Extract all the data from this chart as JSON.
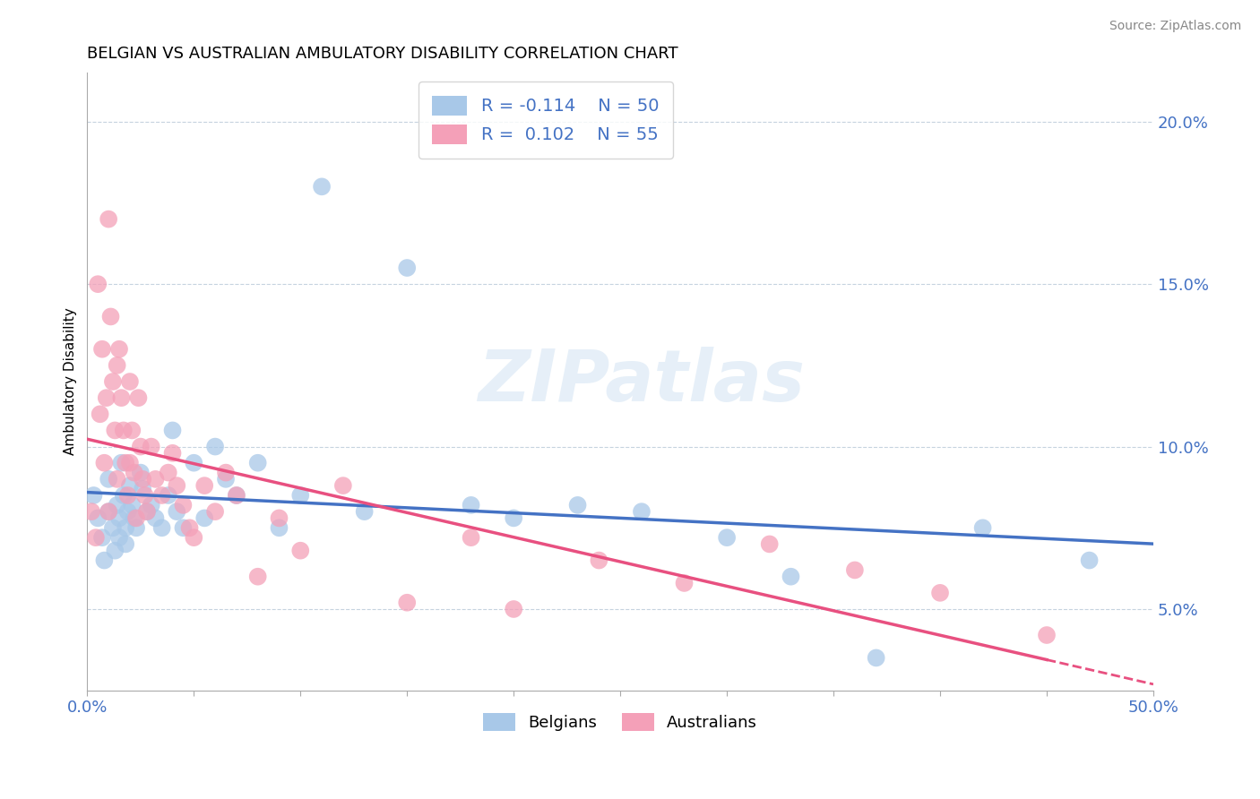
{
  "title": "BELGIAN VS AUSTRALIAN AMBULATORY DISABILITY CORRELATION CHART",
  "source": "Source: ZipAtlas.com",
  "ylabel": "Ambulatory Disability",
  "xlim": [
    0.0,
    0.5
  ],
  "ylim": [
    0.025,
    0.215
  ],
  "yticks": [
    0.05,
    0.1,
    0.15,
    0.2
  ],
  "ytick_labels": [
    "5.0%",
    "10.0%",
    "15.0%",
    "20.0%"
  ],
  "legend_blue_r": "R = -0.114",
  "legend_blue_n": "N = 50",
  "legend_pink_r": "R =  0.102",
  "legend_pink_n": "N = 55",
  "blue_color": "#a8c8e8",
  "pink_color": "#f4a0b8",
  "blue_line_color": "#4472c4",
  "pink_line_color": "#e85080",
  "watermark": "ZIPatlas",
  "background_color": "#ffffff",
  "belgians_x": [
    0.003,
    0.005,
    0.007,
    0.008,
    0.01,
    0.01,
    0.012,
    0.013,
    0.014,
    0.015,
    0.015,
    0.016,
    0.017,
    0.018,
    0.018,
    0.019,
    0.02,
    0.021,
    0.022,
    0.023,
    0.025,
    0.026,
    0.028,
    0.03,
    0.032,
    0.035,
    0.038,
    0.04,
    0.042,
    0.045,
    0.05,
    0.055,
    0.06,
    0.065,
    0.07,
    0.08,
    0.09,
    0.1,
    0.11,
    0.13,
    0.15,
    0.18,
    0.2,
    0.23,
    0.26,
    0.3,
    0.33,
    0.37,
    0.42,
    0.47
  ],
  "belgians_y": [
    0.085,
    0.078,
    0.072,
    0.065,
    0.08,
    0.09,
    0.075,
    0.068,
    0.082,
    0.078,
    0.072,
    0.095,
    0.085,
    0.075,
    0.07,
    0.08,
    0.088,
    0.082,
    0.078,
    0.075,
    0.092,
    0.087,
    0.08,
    0.082,
    0.078,
    0.075,
    0.085,
    0.105,
    0.08,
    0.075,
    0.095,
    0.078,
    0.1,
    0.09,
    0.085,
    0.095,
    0.075,
    0.085,
    0.18,
    0.08,
    0.155,
    0.082,
    0.078,
    0.082,
    0.08,
    0.072,
    0.06,
    0.035,
    0.075,
    0.065
  ],
  "australians_x": [
    0.002,
    0.004,
    0.005,
    0.006,
    0.007,
    0.008,
    0.009,
    0.01,
    0.01,
    0.011,
    0.012,
    0.013,
    0.014,
    0.014,
    0.015,
    0.016,
    0.017,
    0.018,
    0.019,
    0.02,
    0.02,
    0.021,
    0.022,
    0.023,
    0.024,
    0.025,
    0.026,
    0.027,
    0.028,
    0.03,
    0.032,
    0.035,
    0.038,
    0.04,
    0.042,
    0.045,
    0.048,
    0.05,
    0.055,
    0.06,
    0.065,
    0.07,
    0.08,
    0.09,
    0.1,
    0.12,
    0.15,
    0.18,
    0.2,
    0.24,
    0.28,
    0.32,
    0.36,
    0.4,
    0.45
  ],
  "australians_y": [
    0.08,
    0.072,
    0.15,
    0.11,
    0.13,
    0.095,
    0.115,
    0.17,
    0.08,
    0.14,
    0.12,
    0.105,
    0.125,
    0.09,
    0.13,
    0.115,
    0.105,
    0.095,
    0.085,
    0.12,
    0.095,
    0.105,
    0.092,
    0.078,
    0.115,
    0.1,
    0.09,
    0.085,
    0.08,
    0.1,
    0.09,
    0.085,
    0.092,
    0.098,
    0.088,
    0.082,
    0.075,
    0.072,
    0.088,
    0.08,
    0.092,
    0.085,
    0.06,
    0.078,
    0.068,
    0.088,
    0.052,
    0.072,
    0.05,
    0.065,
    0.058,
    0.07,
    0.062,
    0.055,
    0.042
  ]
}
